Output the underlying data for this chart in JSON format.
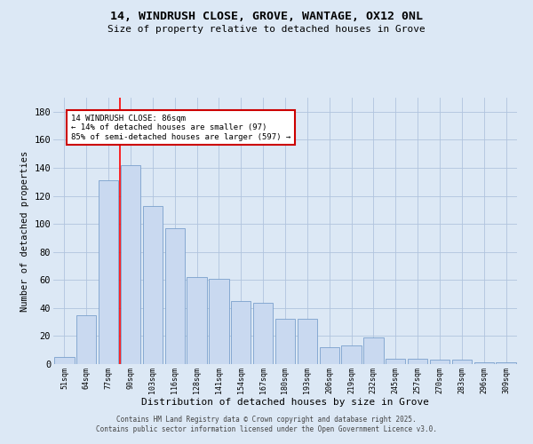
{
  "title_line1": "14, WINDRUSH CLOSE, GROVE, WANTAGE, OX12 0NL",
  "title_line2": "Size of property relative to detached houses in Grove",
  "xlabel": "Distribution of detached houses by size in Grove",
  "ylabel": "Number of detached properties",
  "categories": [
    "51sqm",
    "64sqm",
    "77sqm",
    "90sqm",
    "103sqm",
    "116sqm",
    "128sqm",
    "141sqm",
    "154sqm",
    "167sqm",
    "180sqm",
    "193sqm",
    "206sqm",
    "219sqm",
    "232sqm",
    "245sqm",
    "257sqm",
    "270sqm",
    "283sqm",
    "296sqm",
    "309sqm"
  ],
  "values": [
    5,
    35,
    131,
    142,
    113,
    97,
    62,
    61,
    45,
    44,
    32,
    32,
    12,
    13,
    19,
    4,
    4,
    3,
    3,
    1,
    1
  ],
  "bar_color": "#c9d9f0",
  "bar_edge_color": "#7aa0cc",
  "bar_width": 0.9,
  "red_line_x": 2.5,
  "annotation_text": "14 WINDRUSH CLOSE: 86sqm\n← 14% of detached houses are smaller (97)\n85% of semi-detached houses are larger (597) →",
  "annotation_box_color": "#ffffff",
  "annotation_box_edge": "#cc0000",
  "ylim": [
    0,
    190
  ],
  "yticks": [
    0,
    20,
    40,
    60,
    80,
    100,
    120,
    140,
    160,
    180
  ],
  "grid_color": "#b0c4de",
  "background_color": "#dce8f5",
  "footer_line1": "Contains HM Land Registry data © Crown copyright and database right 2025.",
  "footer_line2": "Contains public sector information licensed under the Open Government Licence v3.0."
}
